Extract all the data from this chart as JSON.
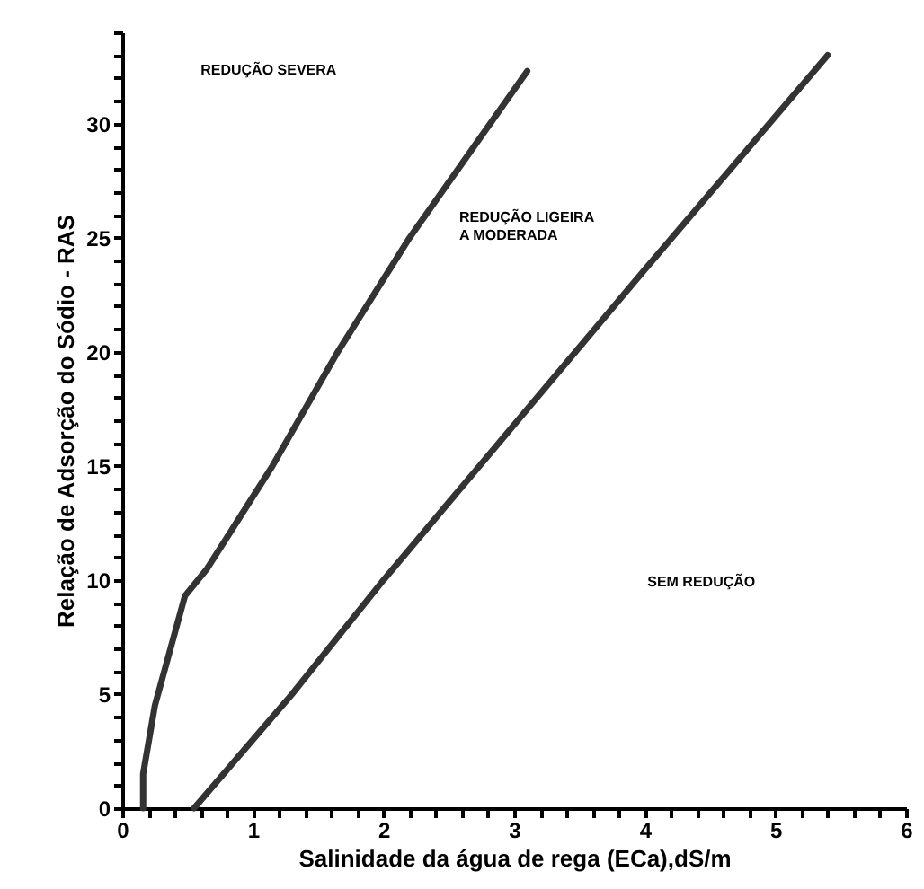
{
  "chart_data": {
    "type": "line",
    "xlabel": "Salinidade da água de rega (ECa),dS/m",
    "ylabel": "Relação de Adsorção do Sódio - RAS",
    "xlim": [
      0,
      6
    ],
    "ylim": [
      0,
      34
    ],
    "xticks": [
      0,
      {
        "value": 0.2,
        "label": null
      },
      {
        "value": 0.4,
        "label": null
      },
      {
        "value": 0.6,
        "label": null
      },
      {
        "value": 0.8,
        "label": null
      },
      1,
      {
        "value": 1.2,
        "label": null
      },
      {
        "value": 1.4,
        "label": null
      },
      {
        "value": 1.6,
        "label": null
      },
      {
        "value": 1.8,
        "label": null
      },
      2,
      {
        "value": 2.2,
        "label": null
      },
      {
        "value": 2.4,
        "label": null
      },
      {
        "value": 2.6,
        "label": null
      },
      {
        "value": 2.8,
        "label": null
      },
      3,
      {
        "value": 3.2,
        "label": null
      },
      {
        "value": 3.4,
        "label": null
      },
      {
        "value": 3.6,
        "label": null
      },
      {
        "value": 3.8,
        "label": null
      },
      4,
      {
        "value": 4.2,
        "label": null
      },
      {
        "value": 4.4,
        "label": null
      },
      {
        "value": 4.6,
        "label": null
      },
      {
        "value": 4.8,
        "label": null
      },
      5,
      {
        "value": 5.2,
        "label": null
      },
      {
        "value": 5.4,
        "label": null
      },
      {
        "value": 5.6,
        "label": null
      },
      {
        "value": 5.8,
        "label": null
      },
      6
    ],
    "yticks": [
      0,
      {
        "value": 1,
        "label": null
      },
      {
        "value": 2,
        "label": null
      },
      {
        "value": 3,
        "label": null
      },
      {
        "value": 4,
        "label": null
      },
      5,
      {
        "value": 6,
        "label": null
      },
      {
        "value": 7,
        "label": null
      },
      {
        "value": 8,
        "label": null
      },
      {
        "value": 9,
        "label": null
      },
      10,
      {
        "value": 11,
        "label": null
      },
      {
        "value": 12,
        "label": null
      },
      {
        "value": 13,
        "label": null
      },
      {
        "value": 14,
        "label": null
      },
      15,
      {
        "value": 16,
        "label": null
      },
      {
        "value": 17,
        "label": null
      },
      {
        "value": 18,
        "label": null
      },
      {
        "value": 19,
        "label": null
      },
      20,
      {
        "value": 21,
        "label": null
      },
      {
        "value": 22,
        "label": null
      },
      {
        "value": 23,
        "label": null
      },
      {
        "value": 24,
        "label": null
      },
      25,
      {
        "value": 26,
        "label": null
      },
      {
        "value": 27,
        "label": null
      },
      {
        "value": 28,
        "label": null
      },
      {
        "value": 29,
        "label": null
      },
      30,
      {
        "value": 31,
        "label": null
      },
      {
        "value": 32,
        "label": null
      },
      {
        "value": 33,
        "label": null
      },
      {
        "value": 34,
        "label": null
      }
    ],
    "series": [
      {
        "color": "#333333",
        "x": [
          0.16,
          0.16,
          0.25,
          0.48,
          0.65,
          1.15,
          1.65,
          2.2,
          3.1
        ],
        "values": [
          0,
          1.5,
          4.5,
          9.3,
          10.5,
          15,
          20,
          25,
          32.3
        ]
      },
      {
        "color": "#333333",
        "x": [
          0.55,
          1.3,
          2.0,
          3.0,
          4.0,
          5.4
        ],
        "values": [
          0,
          5,
          10,
          16.8,
          23.6,
          33
        ]
      }
    ],
    "annotations": [
      "REDUÇÃO SEVERA",
      "REDUÇÃO LIGEIRA\nA MODERADA",
      "SEM REDUÇÃO"
    ],
    "line_style": "solid",
    "grid": false
  }
}
